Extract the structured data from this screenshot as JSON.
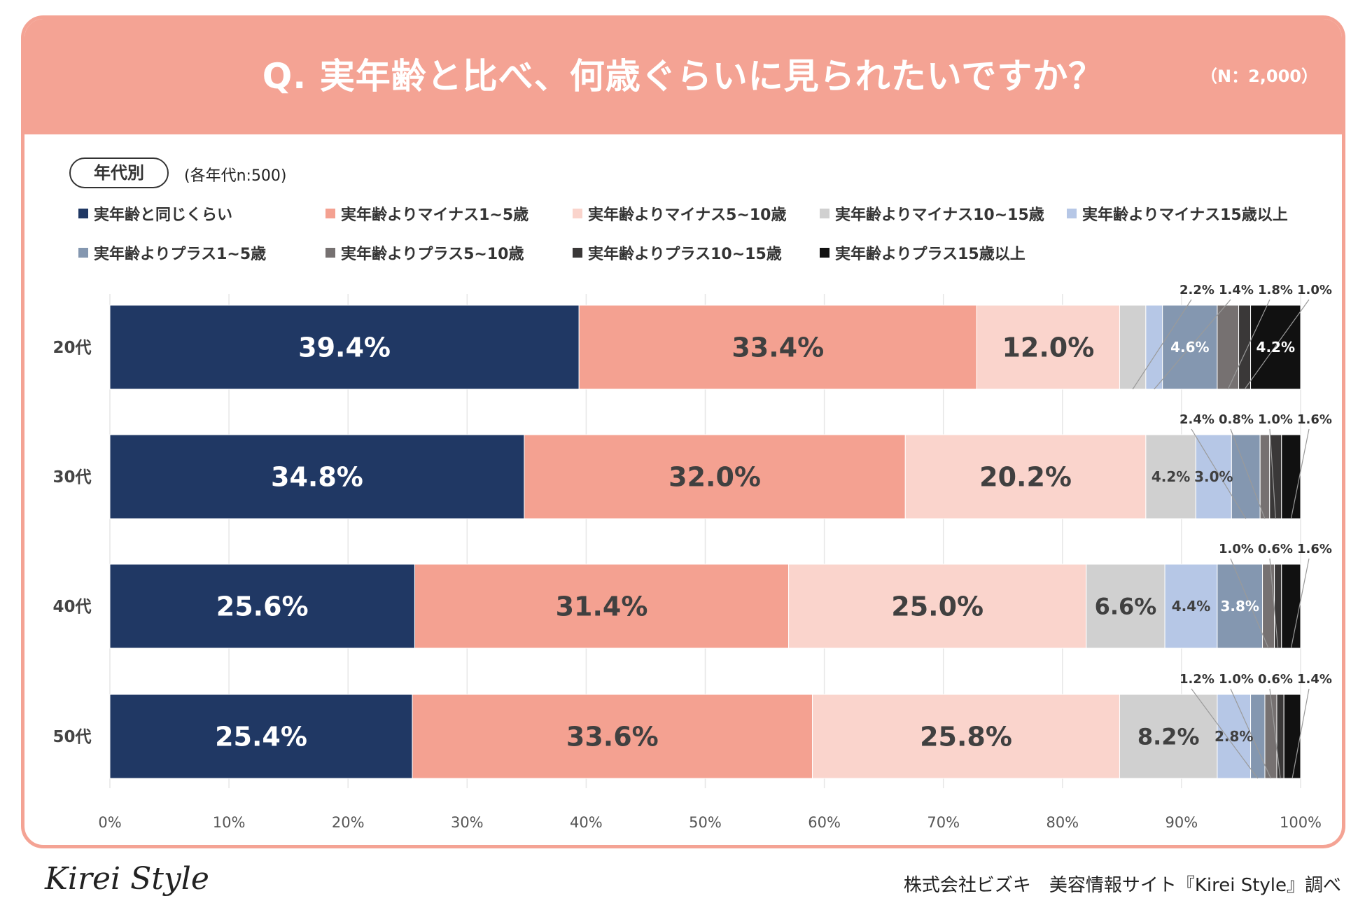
{
  "header": {
    "title": "Q. 実年齢と比べ、何歳ぐらいに見られたいですか？",
    "sample": "（N：2,000）"
  },
  "filter": {
    "label": "年代別",
    "note": "(各年代n:500)"
  },
  "footer": {
    "logo": "Kirei Style",
    "source": "株式会社ビズキ　美容情報サイト『Kirei Style』調べ"
  },
  "colors": {
    "header_bg": "#f4a394",
    "border": "#f4a394"
  },
  "chart_data": {
    "type": "bar",
    "orientation": "horizontal",
    "stacked": true,
    "title": "Q. 実年齢と比べ、何歳ぐらいに見られたいですか？",
    "categories": [
      "20代",
      "30代",
      "40代",
      "50代"
    ],
    "xlim": [
      0,
      100
    ],
    "xticks": [
      "0%",
      "10%",
      "20%",
      "30%",
      "40%",
      "50%",
      "60%",
      "70%",
      "80%",
      "90%",
      "100%"
    ],
    "grid": true,
    "series": [
      {
        "name": "実年齢と同じくらい",
        "color": "#203864",
        "label_color": "#ffffff",
        "values": [
          39.4,
          34.8,
          25.6,
          25.4
        ]
      },
      {
        "name": "実年齢よりマイナス1~5歳",
        "color": "#f4a191",
        "label_color": "#404040",
        "values": [
          33.4,
          32.0,
          31.4,
          33.6
        ]
      },
      {
        "name": "実年齢よりマイナス5~10歳",
        "color": "#fad4cc",
        "label_color": "#404040",
        "values": [
          12.0,
          20.2,
          25.0,
          25.8
        ]
      },
      {
        "name": "実年齢よりマイナス10~15歳",
        "color": "#d0d0d0",
        "label_color": "#404040",
        "values": [
          2.2,
          4.2,
          6.6,
          8.2
        ]
      },
      {
        "name": "実年齢よりマイナス15歳以上",
        "color": "#b6c7e6",
        "label_color": "#404040",
        "values": [
          1.4,
          3.0,
          4.4,
          2.8
        ]
      },
      {
        "name": "実年齢よりプラス1~5歳",
        "color": "#8497b0",
        "label_color": "#ffffff",
        "values": [
          4.6,
          2.4,
          3.8,
          1.2
        ]
      },
      {
        "name": "実年齢よりプラス5~10歳",
        "color": "#767171",
        "label_color": "#ffffff",
        "values": [
          1.8,
          0.8,
          1.0,
          1.0
        ]
      },
      {
        "name": "実年齢よりプラス10~15歳",
        "color": "#3a3838",
        "label_color": "#ffffff",
        "values": [
          1.0,
          1.0,
          0.6,
          0.6
        ]
      },
      {
        "name": "実年齢よりプラス15歳以上",
        "color": "#111111",
        "label_color": "#ffffff",
        "values": [
          4.2,
          1.6,
          1.6,
          1.4
        ]
      }
    ],
    "data_labels": [
      [
        {
          "series": 0,
          "text": "39.4%",
          "pos": "inside"
        },
        {
          "series": 1,
          "text": "33.4%",
          "pos": "inside"
        },
        {
          "series": 2,
          "text": "12.0%",
          "pos": "inside"
        },
        {
          "series": 3,
          "text": "2.2%",
          "pos": "callout"
        },
        {
          "series": 4,
          "text": "1.4%",
          "pos": "callout"
        },
        {
          "series": 5,
          "text": "4.6%",
          "pos": "inside"
        },
        {
          "series": 6,
          "text": "1.8%",
          "pos": "callout"
        },
        {
          "series": 7,
          "text": "1.0%",
          "pos": "callout"
        },
        {
          "series": 8,
          "text": "4.2%",
          "pos": "inside"
        }
      ],
      [
        {
          "series": 0,
          "text": "34.8%",
          "pos": "inside"
        },
        {
          "series": 1,
          "text": "32.0%",
          "pos": "inside"
        },
        {
          "series": 2,
          "text": "20.2%",
          "pos": "inside"
        },
        {
          "series": 3,
          "text": "4.2%",
          "pos": "inside"
        },
        {
          "series": 4,
          "text": "3.0%",
          "pos": "inside"
        },
        {
          "series": 5,
          "text": "2.4%",
          "pos": "callout"
        },
        {
          "series": 6,
          "text": "0.8%",
          "pos": "callout"
        },
        {
          "series": 7,
          "text": "1.0%",
          "pos": "callout"
        },
        {
          "series": 8,
          "text": "1.6%",
          "pos": "callout"
        }
      ],
      [
        {
          "series": 0,
          "text": "25.6%",
          "pos": "inside"
        },
        {
          "series": 1,
          "text": "31.4%",
          "pos": "inside"
        },
        {
          "series": 2,
          "text": "25.0%",
          "pos": "inside"
        },
        {
          "series": 3,
          "text": "6.6%",
          "pos": "inside"
        },
        {
          "series": 4,
          "text": "4.4%",
          "pos": "inside"
        },
        {
          "series": 5,
          "text": "3.8%",
          "pos": "inside"
        },
        {
          "series": 6,
          "text": "1.0%",
          "pos": "callout"
        },
        {
          "series": 7,
          "text": "0.6%",
          "pos": "callout"
        },
        {
          "series": 8,
          "text": "1.6%",
          "pos": "callout"
        }
      ],
      [
        {
          "series": 0,
          "text": "25.4%",
          "pos": "inside"
        },
        {
          "series": 1,
          "text": "33.6%",
          "pos": "inside"
        },
        {
          "series": 2,
          "text": "25.8%",
          "pos": "inside"
        },
        {
          "series": 3,
          "text": "8.2%",
          "pos": "inside"
        },
        {
          "series": 4,
          "text": "2.8%",
          "pos": "inside"
        },
        {
          "series": 5,
          "text": "1.2%",
          "pos": "callout"
        },
        {
          "series": 6,
          "text": "1.0%",
          "pos": "callout"
        },
        {
          "series": 7,
          "text": "0.6%",
          "pos": "callout"
        },
        {
          "series": 8,
          "text": "1.4%",
          "pos": "callout"
        }
      ]
    ]
  }
}
